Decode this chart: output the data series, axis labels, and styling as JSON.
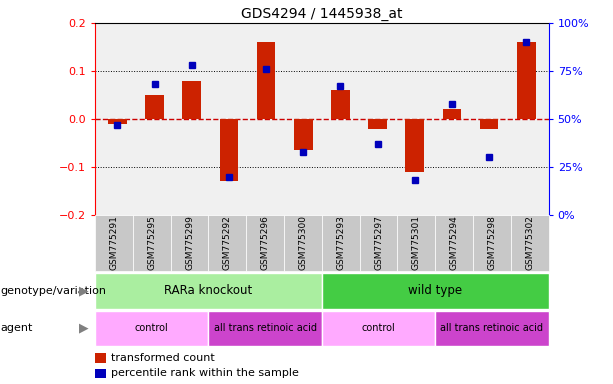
{
  "title": "GDS4294 / 1445938_at",
  "samples": [
    "GSM775291",
    "GSM775295",
    "GSM775299",
    "GSM775292",
    "GSM775296",
    "GSM775300",
    "GSM775293",
    "GSM775297",
    "GSM775301",
    "GSM775294",
    "GSM775298",
    "GSM775302"
  ],
  "transformed_count": [
    -0.01,
    0.05,
    0.08,
    -0.13,
    0.16,
    -0.065,
    0.06,
    -0.02,
    -0.11,
    0.02,
    -0.02,
    0.16
  ],
  "percentile_rank": [
    47,
    68,
    78,
    20,
    76,
    33,
    67,
    37,
    18,
    58,
    30,
    90
  ],
  "ylim_left": [
    -0.2,
    0.2
  ],
  "ylim_right": [
    0,
    100
  ],
  "yticks_left": [
    -0.2,
    -0.1,
    0.0,
    0.1,
    0.2
  ],
  "yticks_right": [
    0,
    25,
    50,
    75,
    100
  ],
  "ytick_labels_right": [
    "0%",
    "25%",
    "50%",
    "75%",
    "100%"
  ],
  "bar_color": "#CC2200",
  "dot_color": "#0000BB",
  "zero_line_color": "#CC0000",
  "grid_color": "black",
  "plot_bg": "#F0F0F0",
  "genotype_groups": [
    {
      "label": "RARa knockout",
      "start": 0,
      "end": 6,
      "color": "#AAEEA0"
    },
    {
      "label": "wild type",
      "start": 6,
      "end": 12,
      "color": "#44CC44"
    }
  ],
  "agent_groups": [
    {
      "label": "control",
      "start": 0,
      "end": 3,
      "color": "#FFAAFF"
    },
    {
      "label": "all trans retinoic acid",
      "start": 3,
      "end": 6,
      "color": "#CC44CC"
    },
    {
      "label": "control",
      "start": 6,
      "end": 9,
      "color": "#FFAAFF"
    },
    {
      "label": "all trans retinoic acid",
      "start": 9,
      "end": 12,
      "color": "#CC44CC"
    }
  ],
  "legend_items": [
    {
      "label": "transformed count",
      "color": "#CC2200"
    },
    {
      "label": "percentile rank within the sample",
      "color": "#0000BB"
    }
  ],
  "genotype_label": "genotype/variation",
  "agent_label": "agent",
  "tick_box_color": "#C8C8C8",
  "fig_width": 6.13,
  "fig_height": 3.84,
  "dpi": 100
}
